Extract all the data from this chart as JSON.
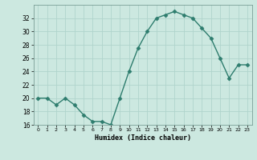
{
  "x": [
    0,
    1,
    2,
    3,
    4,
    5,
    6,
    7,
    8,
    9,
    10,
    11,
    12,
    13,
    14,
    15,
    16,
    17,
    18,
    19,
    20,
    21,
    22,
    23
  ],
  "y": [
    20,
    20,
    19,
    20,
    19,
    17.5,
    16.5,
    16.5,
    16,
    20,
    24,
    27.5,
    30,
    32,
    32.5,
    33,
    32.5,
    32,
    30.5,
    29,
    26,
    23,
    25,
    25
  ],
  "line_color": "#2e7d6e",
  "marker": "D",
  "markersize": 2.5,
  "linewidth": 1.0,
  "bg_color": "#cce8e0",
  "grid_color": "#b0d4cc",
  "xlabel": "Humidex (Indice chaleur)",
  "ylim": [
    16,
    34
  ],
  "xlim": [
    -0.5,
    23.5
  ],
  "yticks": [
    16,
    18,
    20,
    22,
    24,
    26,
    28,
    30,
    32
  ],
  "xticks": [
    0,
    1,
    2,
    3,
    4,
    5,
    6,
    7,
    8,
    9,
    10,
    11,
    12,
    13,
    14,
    15,
    16,
    17,
    18,
    19,
    20,
    21,
    22,
    23
  ]
}
